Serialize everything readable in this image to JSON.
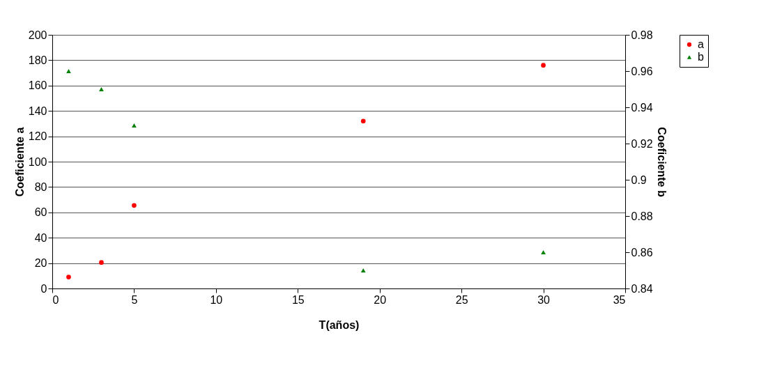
{
  "chart_data": {
    "type": "scatter",
    "xlabel": "T(años)",
    "ylabel": "Coeficiente a",
    "y2label": "Coeficiente b",
    "series": [
      {
        "name": "a",
        "color": "#ff0000",
        "marker": "circle",
        "x": [
          1,
          3,
          5,
          19,
          30
        ],
        "values": [
          9,
          20.5,
          65.5,
          132,
          176
        ]
      },
      {
        "name": "b",
        "color": "#008000",
        "marker": "triangle",
        "axis": "y2",
        "x": [
          1,
          3,
          5,
          19,
          30
        ],
        "values": [
          0.96,
          0.95,
          0.93,
          0.85,
          0.86
        ]
      }
    ],
    "xlim": [
      0,
      35
    ],
    "xticks": [
      0,
      5,
      10,
      15,
      20,
      25,
      30,
      35
    ],
    "ylim": [
      0,
      200
    ],
    "yticks": [
      0,
      20,
      40,
      60,
      80,
      100,
      120,
      140,
      160,
      180,
      200
    ],
    "y2lim": [
      0.84,
      0.98
    ],
    "y2ticks": [
      0.84,
      0.86,
      0.88,
      0.9,
      0.92,
      0.94,
      0.96,
      0.98
    ],
    "grid": "y",
    "legend": "right"
  }
}
